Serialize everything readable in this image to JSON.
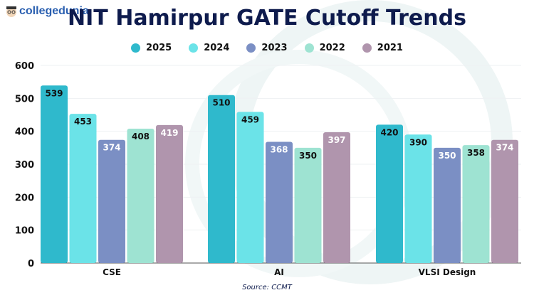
{
  "logo": {
    "text": "collegedunia"
  },
  "chart_data": {
    "type": "bar",
    "title": "NIT Hamirpur GATE Cutoff Trends",
    "categories": [
      "CSE",
      "AI",
      "VLSI Design"
    ],
    "series": [
      {
        "name": "2025",
        "color": "#2fb9cc",
        "label_color": "#111111",
        "values": [
          539,
          510,
          420
        ]
      },
      {
        "name": "2024",
        "color": "#6be3e8",
        "label_color": "#111111",
        "values": [
          453,
          459,
          390
        ]
      },
      {
        "name": "2023",
        "color": "#7b8fc4",
        "label_color": "#ffffff",
        "values": [
          374,
          368,
          350
        ]
      },
      {
        "name": "2022",
        "color": "#9ee3d2",
        "label_color": "#111111",
        "values": [
          408,
          350,
          358
        ]
      },
      {
        "name": "2021",
        "color": "#b095ad",
        "label_color": "#ffffff",
        "values": [
          419,
          397,
          374
        ]
      }
    ],
    "yticks": [
      0,
      100,
      200,
      300,
      400,
      500,
      600
    ],
    "ylim": [
      0,
      600
    ],
    "xlabel": "",
    "ylabel": "",
    "grid": true,
    "legend": "top-center",
    "source": "Source: CCMT"
  }
}
